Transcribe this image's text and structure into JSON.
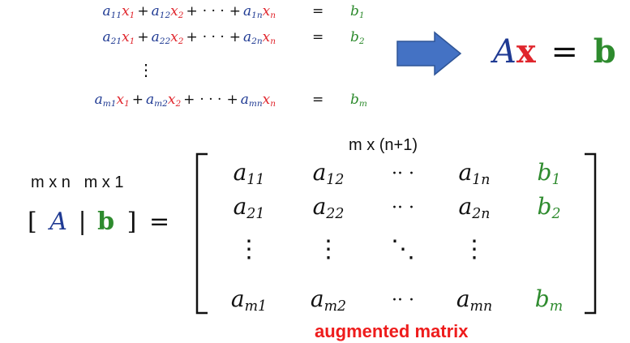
{
  "equations": [
    {
      "a": [
        "a",
        "11"
      ],
      "x1": [
        "x",
        "1"
      ],
      "b": [
        "a",
        "12"
      ],
      "x2": [
        "x",
        "2"
      ],
      "c": [
        "a",
        "1n"
      ],
      "xn": [
        "x",
        "n"
      ],
      "rhs": [
        "b",
        "1"
      ]
    },
    {
      "a": [
        "a",
        "21"
      ],
      "x1": [
        "x",
        "1"
      ],
      "b": [
        "a",
        "22"
      ],
      "x2": [
        "x",
        "2"
      ],
      "c": [
        "a",
        "2n"
      ],
      "xn": [
        "x",
        "n"
      ],
      "rhs": [
        "b",
        "2"
      ]
    },
    {
      "a": [
        "a",
        "m1"
      ],
      "x1": [
        "x",
        "1"
      ],
      "b": [
        "a",
        "m2"
      ],
      "x2": [
        "x",
        "2"
      ],
      "c": [
        "a",
        "mn"
      ],
      "xn": [
        "x",
        "n"
      ],
      "rhs": [
        "b",
        "m"
      ]
    }
  ],
  "symbols": {
    "plus": "+",
    "cdots": "· · ·",
    "equals": "=",
    "vdots": "⋮",
    "ddots": "⋱"
  },
  "compact": {
    "A": "A",
    "x": "x",
    "eq": "=",
    "b": "b"
  },
  "labels": {
    "top_dim": "m x (n+1)",
    "left_dim": "m x n   m x 1",
    "caption": "augmented matrix"
  },
  "augmented_lhs": {
    "open": "[",
    "A": "A",
    "bar": "|",
    "b": "b",
    "close": "]",
    "eq": "="
  },
  "matrix": {
    "rows": [
      [
        [
          "a",
          "11"
        ],
        [
          "a",
          "12"
        ],
        [
          "·· ·",
          ""
        ],
        [
          "a",
          "1n"
        ],
        [
          "b",
          "1"
        ]
      ],
      [
        [
          "a",
          "21"
        ],
        [
          "a",
          "22"
        ],
        [
          "·· ·",
          ""
        ],
        [
          "a",
          "2n"
        ],
        [
          "b",
          "2"
        ]
      ],
      [
        [
          "⋮",
          ""
        ],
        [
          "⋮",
          ""
        ],
        [
          "⋱",
          ""
        ],
        [
          "⋮",
          ""
        ],
        [
          "",
          ""
        ]
      ],
      [
        [
          "a",
          "m1"
        ],
        [
          "a",
          "m2"
        ],
        [
          "·· ·",
          ""
        ],
        [
          "a",
          "mn"
        ],
        [
          "b",
          "m"
        ]
      ]
    ]
  },
  "colors": {
    "coef": "#1f3a93",
    "var": "#e0262d",
    "rhs": "#2e8b2e",
    "arrow": "#4472c4",
    "caption": "#ee1c1c"
  }
}
